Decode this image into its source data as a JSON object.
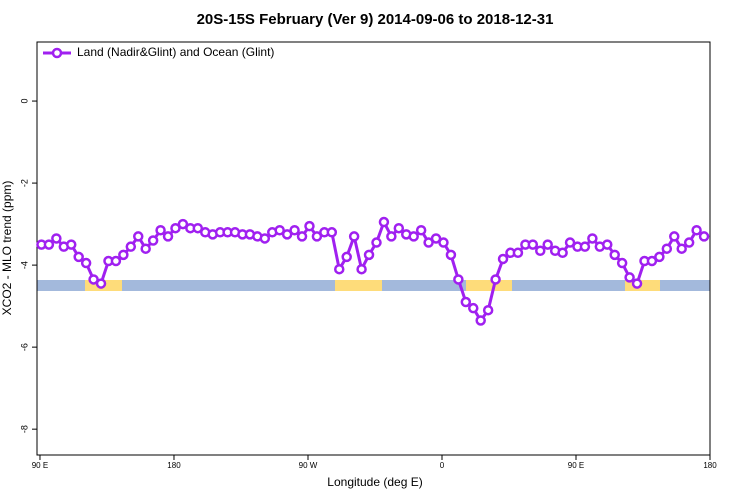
{
  "chart_data": {
    "type": "line",
    "title": "20S-15S February (Ver 9)   2014-09-06 to 2018-12-31",
    "x_label": "Longitude (deg E)",
    "y_label": "XCO2 - MLO trend (ppm)",
    "x": [
      91,
      96,
      101,
      106,
      111,
      116,
      121,
      126,
      131,
      136,
      141,
      146,
      151,
      156,
      161,
      166,
      171,
      176,
      181,
      186,
      191,
      196,
      201,
      206,
      211,
      216,
      221,
      226,
      231,
      236,
      241,
      246,
      251,
      256,
      261,
      266,
      271,
      276,
      281,
      286,
      291,
      296,
      301,
      306,
      311,
      316,
      321,
      326,
      331,
      336,
      341,
      346,
      351,
      356,
      361,
      366,
      371,
      376,
      381,
      386,
      391,
      396,
      401,
      406,
      411,
      416,
      421,
      426,
      431,
      436,
      441,
      446,
      451,
      456,
      461,
      466,
      471,
      476,
      481,
      486,
      491,
      496,
      501,
      506,
      511,
      516,
      521,
      526,
      531,
      536
    ],
    "series": [
      {
        "name": "Land (Nadir&Glint) and Ocean (Glint)",
        "color": "#a020f0",
        "values": [
          -3.5,
          -3.5,
          -3.35,
          -3.55,
          -3.5,
          -3.8,
          -3.95,
          -4.35,
          -4.45,
          -3.9,
          -3.9,
          -3.75,
          -3.55,
          -3.3,
          -3.6,
          -3.4,
          -3.15,
          -3.3,
          -3.1,
          -3.0,
          -3.1,
          -3.1,
          -3.2,
          -3.25,
          -3.2,
          -3.2,
          -3.2,
          -3.25,
          -3.25,
          -3.3,
          -3.35,
          -3.2,
          -3.15,
          -3.25,
          -3.15,
          -3.3,
          -3.05,
          -3.3,
          -3.2,
          -3.2,
          -4.1,
          -3.8,
          -3.3,
          -4.1,
          -3.75,
          -3.45,
          -2.95,
          -3.3,
          -3.1,
          -3.25,
          -3.3,
          -3.15,
          -3.45,
          -3.35,
          -3.45,
          -3.75,
          -4.35,
          -4.9,
          -5.05,
          -5.35,
          -5.1,
          -4.35,
          -3.85,
          -3.7,
          -3.7,
          -3.5,
          -3.5,
          -3.65,
          -3.5,
          -3.65,
          -3.7,
          -3.45,
          -3.55,
          -3.55,
          -3.35,
          -3.55,
          -3.5,
          -3.75,
          -3.95,
          -4.3,
          -4.45,
          -3.9,
          -3.9,
          -3.8,
          -3.6,
          -3.3,
          -3.6,
          -3.45,
          -3.15,
          -3.3
        ]
      }
    ],
    "xlim": [
      88,
      540
    ],
    "xticks": [
      {
        "value": 90,
        "label": "90 E"
      },
      180,
      {
        "value": 270,
        "label": "90 W"
      },
      {
        "value": 360,
        "label": "0"
      },
      {
        "value": 450,
        "label": "90 E"
      },
      {
        "value": 540,
        "label": "180"
      }
    ],
    "ylim": [
      -8.63,
      1.44
    ],
    "yticks": [
      0,
      -2,
      -4,
      -6,
      -8
    ],
    "legend": "top-left"
  }
}
